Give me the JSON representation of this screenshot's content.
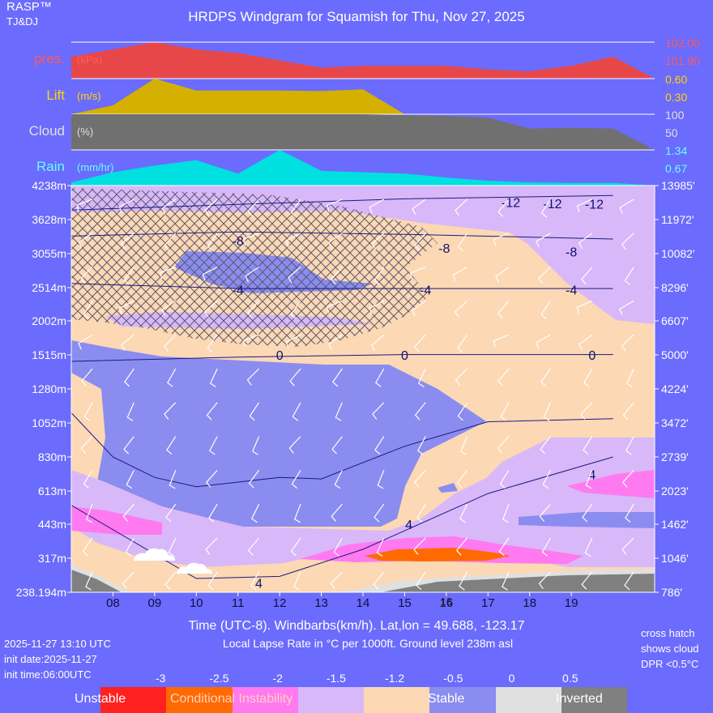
{
  "header": {
    "brand": "RASP™",
    "sub": "TJ&DJ",
    "title": "HRDPS Windgram for Squamish for Thu, Nov 27, 2025"
  },
  "panels": {
    "pressure": {
      "label": "pres.",
      "unit": "(kPa)",
      "scale_max": "102.00",
      "scale_min": "101.90",
      "color": "#e8474a",
      "label_color": "#ff5a5a"
    },
    "lift": {
      "label": "Lift",
      "unit": "(m/s)",
      "scale_max": "0.60",
      "scale_min": "0.30",
      "color": "#d4b100",
      "label_color": "#ffd700"
    },
    "cloud": {
      "label": "Cloud",
      "unit": "(%)",
      "scale_max": "100",
      "scale_min": "50",
      "color": "#707070",
      "label_color": "#e0e0e0"
    },
    "rain": {
      "label": "Rain",
      "unit": "(mm/hr)",
      "scale_max": "1.34",
      "scale_min": "0.67",
      "color": "#00e0e0",
      "label_color": "#66ffff"
    }
  },
  "chart_data": {
    "type": "windgram",
    "title": "HRDPS Windgram for Squamish for Thu, Nov 27, 2025",
    "xlabel": "Time (UTC-8). Windbarbs(km/h). Lat,lon = 49.688, -123.17",
    "x_ticks": [
      "08",
      "09",
      "10",
      "11",
      "12",
      "13",
      "14",
      "15",
      "16",
      "17",
      "18",
      "19"
    ],
    "y_left_labels": [
      "4238m",
      "3628m",
      "3055m",
      "2514m",
      "2002m",
      "1515m",
      "1280m",
      "1052m",
      "830m",
      "613m",
      "443m",
      "317m",
      "238.194m"
    ],
    "y_right_labels": [
      "13985'",
      "11972'",
      "10082'",
      "8296'",
      "6607'",
      "5000'",
      "4224'",
      "3472'",
      "2739'",
      "2023'",
      "1462'",
      "1046'",
      "786'"
    ],
    "time_series": {
      "hours": [
        7,
        8,
        9,
        10,
        11,
        12,
        13,
        14,
        15,
        16,
        17,
        18,
        19,
        20
      ],
      "pressure_kpa": [
        101.96,
        101.98,
        102.0,
        101.98,
        101.97,
        101.95,
        101.93,
        101.935,
        101.935,
        101.935,
        101.925,
        101.92,
        101.935,
        101.96
      ],
      "lift_ms": [
        0.0,
        0.15,
        0.6,
        0.4,
        0.4,
        0.4,
        0.39,
        0.42,
        0.0,
        0.0,
        0.0,
        0.0,
        0.0,
        0.0
      ],
      "cloud_pct": [
        100,
        100,
        100,
        100,
        100,
        100,
        100,
        100,
        98,
        95,
        90,
        60,
        62,
        60
      ],
      "rain_mmhr": [
        0.12,
        0.5,
        0.75,
        0.95,
        0.45,
        1.34,
        0.55,
        0.5,
        0.45,
        0.3,
        0.18,
        0.12,
        0.1,
        0.1
      ]
    },
    "isotherms": [
      {
        "label": "-12",
        "points": [
          [
            7,
            3800
          ],
          [
            11,
            3900
          ],
          [
            15,
            4000
          ],
          [
            20,
            4060
          ]
        ]
      },
      {
        "label": "-8",
        "points": [
          [
            7,
            3350
          ],
          [
            11,
            3420
          ],
          [
            15,
            3380
          ],
          [
            20,
            3300
          ]
        ]
      },
      {
        "label": "-4",
        "points": [
          [
            7,
            2580
          ],
          [
            11,
            2500
          ],
          [
            15,
            2500
          ],
          [
            20,
            2500
          ]
        ]
      },
      {
        "label": "0",
        "points": [
          [
            7,
            1470
          ],
          [
            11,
            1500
          ],
          [
            15,
            1520
          ],
          [
            20,
            1520
          ]
        ]
      },
      {
        "label": "4",
        "points": [
          [
            7,
            540
          ],
          [
            10,
            270
          ],
          [
            12,
            275
          ],
          [
            14,
            350
          ],
          [
            17,
            600
          ],
          [
            20,
            830
          ]
        ]
      }
    ],
    "dewpoint_lines": [
      {
        "points": [
          [
            7,
            1120
          ],
          [
            8,
            830
          ],
          [
            9,
            700
          ],
          [
            10,
            640
          ],
          [
            12,
            700
          ],
          [
            13,
            690
          ],
          [
            15,
            900
          ],
          [
            17,
            1060
          ],
          [
            20,
            1080
          ]
        ]
      }
    ],
    "isotherm_labels": [
      {
        "text": "-12",
        "hour": 17.55,
        "alt": 3940
      },
      {
        "text": "-12",
        "hour": 18.55,
        "alt": 3920
      },
      {
        "text": "-12",
        "hour": 19.55,
        "alt": 3910
      },
      {
        "text": "-8",
        "hour": 11.0,
        "alt": 3270
      },
      {
        "text": "-8",
        "hour": 15.95,
        "alt": 3150
      },
      {
        "text": "-8",
        "hour": 19.0,
        "alt": 3090
      },
      {
        "text": "-4",
        "hour": 11.0,
        "alt": 2480
      },
      {
        "text": "-4",
        "hour": 15.5,
        "alt": 2480
      },
      {
        "text": "-4",
        "hour": 19.0,
        "alt": 2480
      },
      {
        "text": "0",
        "hour": 12.0,
        "alt": 1515
      },
      {
        "text": "0",
        "hour": 15.0,
        "alt": 1515
      },
      {
        "text": "0",
        "hour": 19.5,
        "alt": 1515
      },
      {
        "text": "4",
        "hour": 19.5,
        "alt": 720
      },
      {
        "text": "4",
        "hour": 15.1,
        "alt": 443
      },
      {
        "text": "4",
        "hour": 11.5,
        "alt": 260
      }
    ],
    "lapse_rate_scale": {
      "ticks": [
        "-3",
        "-2.5",
        "-2",
        "-1.5",
        "-1.2",
        "-0.5",
        "0",
        "0.5"
      ],
      "colors": [
        "#ff2020",
        "#ff6a00",
        "#ff7af0",
        "#d8b8f8",
        "#fcd8b4",
        "#8a8cf0",
        "#e0e0e0",
        "#808080"
      ],
      "labels": [
        "Unstable",
        "Conditional Instability",
        "Stable",
        "Inverted"
      ]
    },
    "footer_text": "Local Lapse Rate in °C per 1000ft.   Ground level 238m asl",
    "hour_marker": "16"
  },
  "footer": {
    "date_line": "2025-11-27 13:10 UTC",
    "init_date": "init date:2025-11-27",
    "init_time": "init time:06:00UTC",
    "note1": "cross hatch",
    "note2": "shows cloud",
    "note3": "DPR <0.5°C"
  }
}
